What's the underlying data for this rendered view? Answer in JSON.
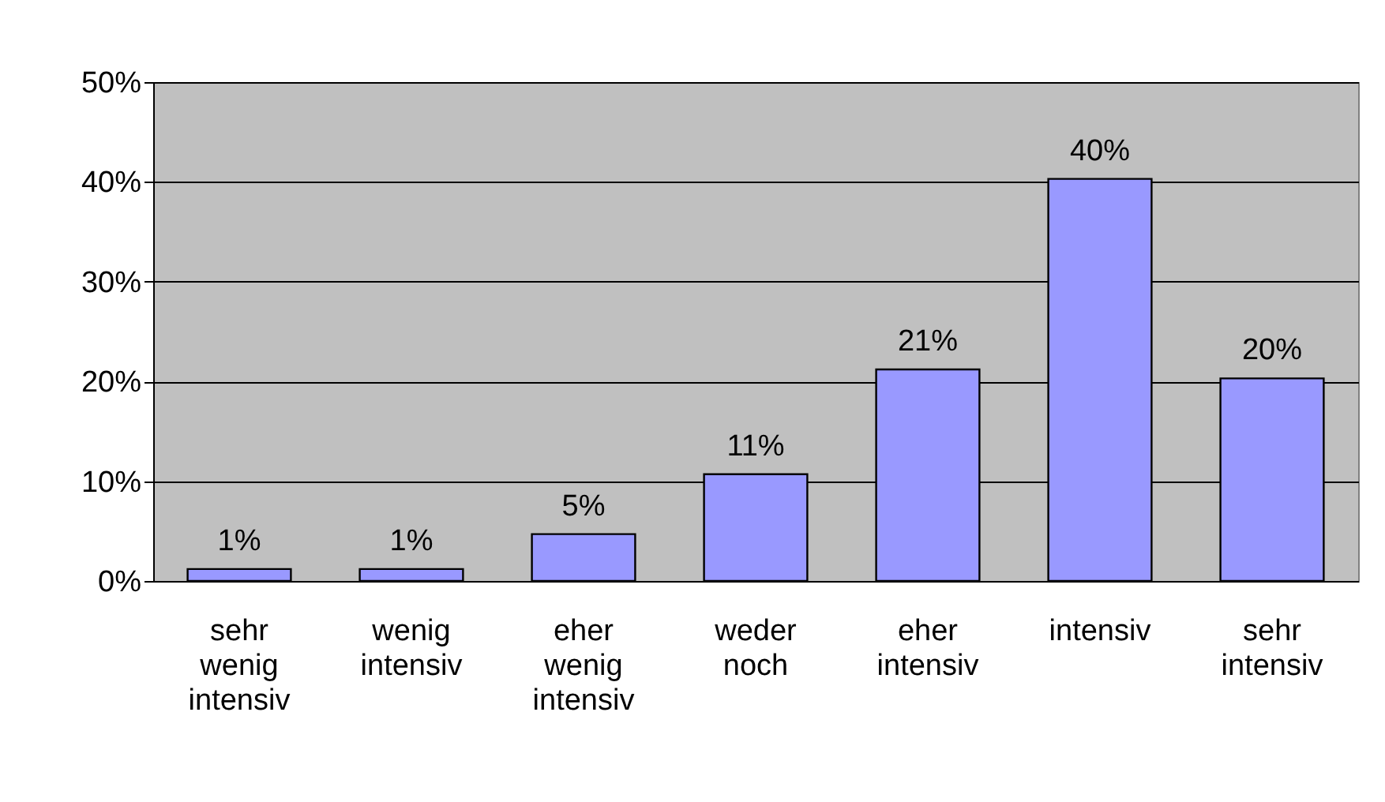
{
  "chart_data": {
    "type": "bar",
    "categories": [
      "sehr wenig intensiv",
      "wenig intensiv",
      "eher wenig intensiv",
      "weder noch",
      "eher intensiv",
      "intensiv",
      "sehr intensiv"
    ],
    "values": [
      1.2,
      1.2,
      4.7,
      10.7,
      21.2,
      40.3,
      20.3
    ],
    "value_labels": [
      "1%",
      "1%",
      "5%",
      "11%",
      "21%",
      "40%",
      "20%"
    ],
    "color": "#9999ff",
    "ylim": [
      0,
      50
    ],
    "yticks": [
      {
        "value": 0,
        "label": "0%"
      },
      {
        "value": 10,
        "label": "10%"
      },
      {
        "value": 20,
        "label": "20%"
      },
      {
        "value": 30,
        "label": "30%"
      },
      {
        "value": 40,
        "label": "40%"
      },
      {
        "value": 50,
        "label": "50%"
      }
    ],
    "grid": "y"
  }
}
